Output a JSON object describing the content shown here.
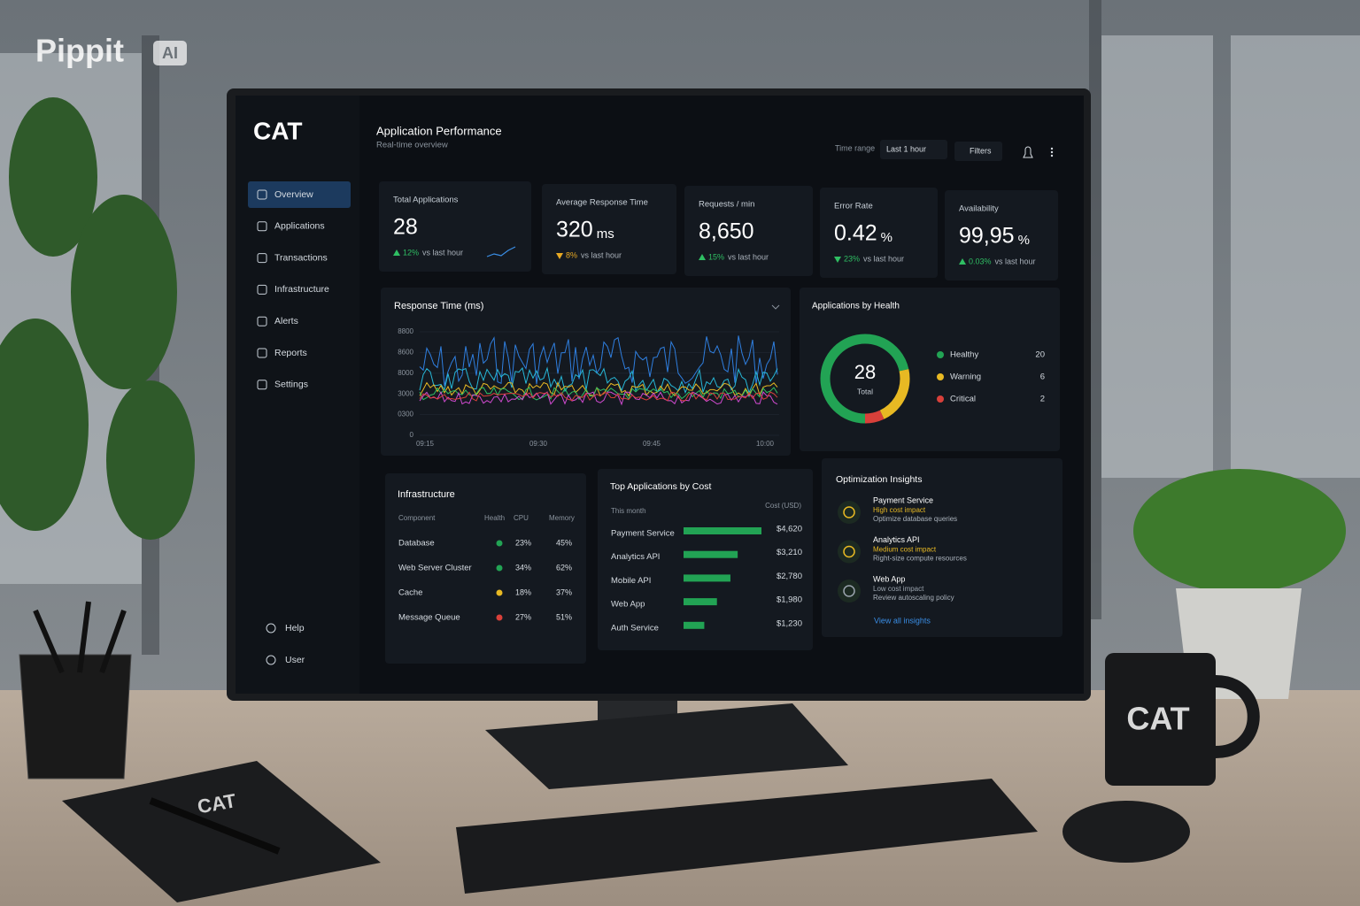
{
  "watermark": {
    "brand": "Pippit",
    "badge": "AI"
  },
  "sidebar": {
    "logo": "CAT",
    "nav": [
      "Overview",
      "Applications",
      "Transactions",
      "Infrastructure",
      "Alerts",
      "Reports",
      "Settings"
    ],
    "active": 0,
    "footer": [
      "Help",
      "User"
    ]
  },
  "header": {
    "title": "Application Performance",
    "subtitle": "Real-time overview",
    "time_range_label": "Time range",
    "time_range": "Last 1 hour",
    "filters": "Filters"
  },
  "kpis": [
    {
      "label": "Total Applications",
      "value": "28",
      "change": "12%",
      "change_text": "vs last hour",
      "direction": "up"
    },
    {
      "label": "Average Response Time",
      "value": "320",
      "unit": "ms",
      "change": "8%",
      "change_text": "vs last hour",
      "direction": "down-warn"
    },
    {
      "label": "Requests / min",
      "value": "8,650",
      "change": "15%",
      "change_text": "vs last hour",
      "direction": "up"
    },
    {
      "label": "Error Rate",
      "value": "0.42",
      "unit": "%",
      "change": "23%",
      "change_text": "vs last hour",
      "direction": "down"
    },
    {
      "label": "Availability",
      "value": "99,95",
      "unit": "%",
      "change": "0.03%",
      "change_text": "vs last hour",
      "direction": "up"
    }
  ],
  "response_time": {
    "title": "Response Time (ms)",
    "yticks": [
      "8800",
      "8600",
      "8000",
      "3000",
      "0300",
      "0"
    ],
    "xticks": [
      "09:15",
      "09:30",
      "09:45",
      "10:00"
    ]
  },
  "health": {
    "title": "Applications by Health",
    "total": "28",
    "total_label": "Total",
    "categories": [
      "Healthy",
      "Warning",
      "Critical"
    ],
    "values": [
      20,
      6,
      2
    ],
    "colors": [
      "#22a354",
      "#e8b923",
      "#d9403a"
    ]
  },
  "cost": {
    "title": "Top Applications by Cost",
    "period": "This month",
    "column": "Cost (USD)",
    "categories": [
      "Payment Service",
      "Analytics API",
      "Mobile API",
      "Web App",
      "Auth Service"
    ],
    "values": [
      4620,
      3210,
      2780,
      1980,
      1230
    ],
    "value_labels": [
      "$4,620",
      "$3,210",
      "$2,780",
      "$1,980",
      "$1,230"
    ],
    "color": "#22a354"
  },
  "infrastructure": {
    "title": "Infrastructure",
    "columns": [
      "Component",
      "Health",
      "CPU",
      "Memory"
    ],
    "rows": [
      [
        "Database",
        "23%",
        "45%"
      ],
      [
        "Web Server Cluster",
        "34%",
        "62%"
      ],
      [
        "Cache",
        "18%",
        "37%"
      ],
      [
        "Message Queue",
        "27%",
        "51%"
      ]
    ],
    "health_colors": [
      "#22a354",
      "#22a354",
      "#e8b923",
      "#d9403a"
    ]
  },
  "insights": {
    "title": "Optimization Insights",
    "items": [
      {
        "name": "Payment Service",
        "impact": "High cost impact",
        "action": "Optimize database queries",
        "color": "#e8b923"
      },
      {
        "name": "Analytics API",
        "impact": "Medium cost impact",
        "action": "Right-size compute resources",
        "color": "#e8b923"
      },
      {
        "name": "Web App",
        "impact": "Low cost impact",
        "action": "Review autoscaling policy",
        "color": "#9aa3ad"
      }
    ],
    "link": "View all insights"
  },
  "props": {
    "mug": "CAT",
    "notebook": "CAT"
  }
}
